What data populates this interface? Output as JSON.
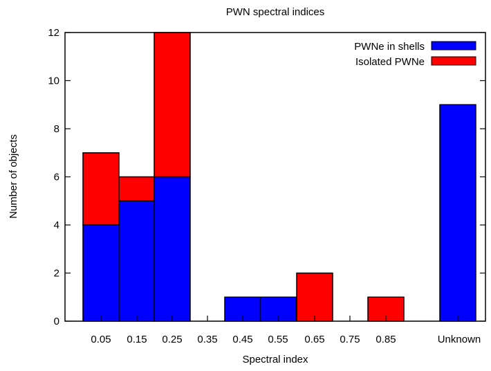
{
  "chart_data": {
    "type": "bar",
    "stacked": true,
    "title": "PWN spectral indices",
    "xlabel": "Spectral index",
    "ylabel": "Number of objects",
    "ylim": [
      0,
      12
    ],
    "yticks": [
      "0",
      "2",
      "4",
      "6",
      "8",
      "10",
      "12"
    ],
    "categories": [
      "0.05",
      "0.15",
      "0.25",
      "0.35",
      "0.45",
      "0.55",
      "0.65",
      "0.75",
      "0.85",
      "Unknown"
    ],
    "series": [
      {
        "name": "PWNe in shells",
        "color": "#0000ff",
        "values": [
          4,
          5,
          6,
          0,
          1,
          1,
          0,
          0,
          0,
          9
        ]
      },
      {
        "name": "Isolated PWNe",
        "color": "#ff0000",
        "values": [
          3,
          1,
          6,
          0,
          0,
          0,
          2,
          0,
          1,
          0
        ]
      }
    ],
    "legend_position": "top-right"
  }
}
